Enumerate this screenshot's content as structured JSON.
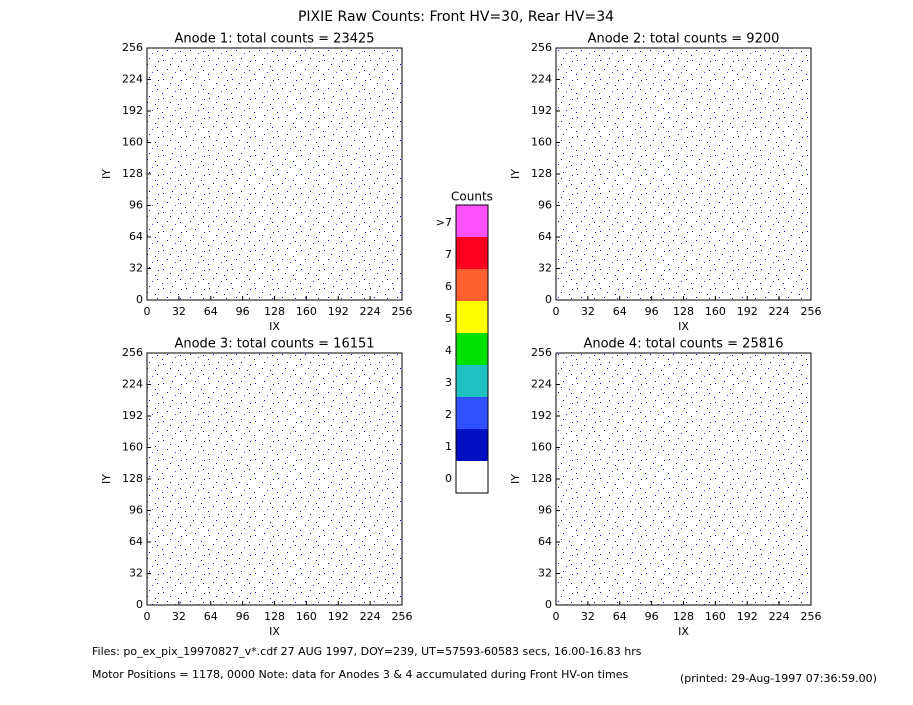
{
  "title": "PIXIE Raw Counts:  Front HV=30, Rear HV=34",
  "footer": {
    "files": "Files: po_ex_pix_19970827_v*.cdf     27 AUG 1997, DOY=239, UT=57593-60583 secs, 16.00-16.83 hrs",
    "motor": "Motor Positions = 1178, 0000    Note: data for Anodes 3 & 4 accumulated during Front HV-on times",
    "printed": "(printed: 29-Aug-1997 07:36:59.00)"
  },
  "chart_data": [
    {
      "type": "heatmap",
      "title": "Anode 1: total counts = 23425",
      "xlabel": "IX",
      "ylabel": "IY",
      "xlim": [
        0,
        256
      ],
      "ylim": [
        0,
        256
      ],
      "xticks": [
        0,
        32,
        64,
        96,
        128,
        160,
        192,
        224,
        256
      ],
      "yticks": [
        0,
        32,
        64,
        96,
        128,
        160,
        192,
        224,
        256
      ]
    },
    {
      "type": "heatmap",
      "title": "Anode 2: total counts = 9200",
      "xlabel": "IX",
      "ylabel": "IY",
      "xlim": [
        0,
        256
      ],
      "ylim": [
        0,
        256
      ],
      "xticks": [
        0,
        32,
        64,
        96,
        128,
        160,
        192,
        224,
        256
      ],
      "yticks": [
        0,
        32,
        64,
        96,
        128,
        160,
        192,
        224,
        256
      ]
    },
    {
      "type": "heatmap",
      "title": "Anode 3: total counts = 16151",
      "xlabel": "IX",
      "ylabel": "IY",
      "xlim": [
        0,
        256
      ],
      "ylim": [
        0,
        256
      ],
      "xticks": [
        0,
        32,
        64,
        96,
        128,
        160,
        192,
        224,
        256
      ],
      "yticks": [
        0,
        32,
        64,
        96,
        128,
        160,
        192,
        224,
        256
      ]
    },
    {
      "type": "heatmap",
      "title": "Anode 4: total counts = 25816",
      "xlabel": "IX",
      "ylabel": "IY",
      "xlim": [
        0,
        256
      ],
      "ylim": [
        0,
        256
      ],
      "xticks": [
        0,
        32,
        64,
        96,
        128,
        160,
        192,
        224,
        256
      ],
      "yticks": [
        0,
        32,
        64,
        96,
        128,
        160,
        192,
        224,
        256
      ]
    },
    {
      "type": "colorbar",
      "title": "Counts",
      "categories": [
        "0",
        "1",
        "2",
        "3",
        "4",
        "5",
        "6",
        "7",
        ">7"
      ],
      "colors": [
        "#ffffff",
        "#0010c0",
        "#3050ff",
        "#20c0c0",
        "#00e000",
        "#ffff00",
        "#ff6030",
        "#ff0020",
        "#ff50ff"
      ]
    }
  ]
}
